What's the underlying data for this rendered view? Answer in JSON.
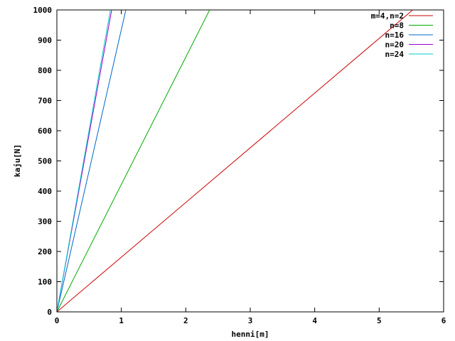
{
  "chart_data": {
    "type": "line",
    "title": "",
    "xlabel": "henni[m]",
    "ylabel": "kaju[N]",
    "xlim": [
      0,
      6
    ],
    "ylim": [
      0,
      1000
    ],
    "xticks": [
      0,
      1,
      2,
      3,
      4,
      5,
      6
    ],
    "yticks": [
      0,
      100,
      200,
      300,
      400,
      500,
      600,
      700,
      800,
      900,
      1000
    ],
    "grid": false,
    "legend_position": "top-right",
    "series": [
      {
        "name": "m=4,n=2",
        "color": "#cc0000",
        "x": [
          0,
          5.52
        ],
        "y": [
          0,
          1000
        ]
      },
      {
        "name": "n=8",
        "color": "#00aa00",
        "x": [
          0,
          2.37
        ],
        "y": [
          0,
          1000
        ]
      },
      {
        "name": "n=16",
        "color": "#0066cc",
        "x": [
          0,
          1.07
        ],
        "y": [
          0,
          1000
        ]
      },
      {
        "name": "n=20",
        "color": "#9900cc",
        "x": [
          0,
          0.85
        ],
        "y": [
          0,
          1000
        ]
      },
      {
        "name": "n=24",
        "color": "#00cccc",
        "x": [
          0,
          0.83
        ],
        "y": [
          0,
          1000
        ]
      }
    ]
  }
}
